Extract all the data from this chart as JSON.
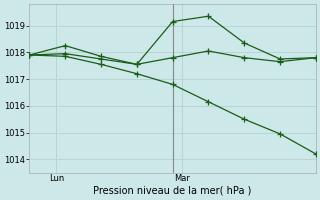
{
  "bg_color": "#cce8e8",
  "grid_color": "#b8d4d4",
  "line_color": "#1a5c1a",
  "title": "Pression niveau de la mer( hPa )",
  "ylim": [
    1013.5,
    1019.8
  ],
  "yticks": [
    1014,
    1015,
    1016,
    1017,
    1018,
    1019
  ],
  "xlim": [
    0,
    16
  ],
  "lun_x": 1.5,
  "mar_x": 8.5,
  "vline_x": 8.0,
  "series1_x": [
    0,
    2,
    4,
    6,
    8,
    10,
    12,
    14,
    16
  ],
  "series1_y": [
    1017.9,
    1018.25,
    1017.85,
    1017.55,
    1019.15,
    1019.35,
    1018.35,
    1017.75,
    1017.8
  ],
  "series2_x": [
    0,
    2,
    4,
    6,
    8,
    10,
    12,
    14,
    16
  ],
  "series2_y": [
    1017.9,
    1017.95,
    1017.75,
    1017.55,
    1017.8,
    1018.05,
    1017.8,
    1017.65,
    1017.8
  ],
  "series3_x": [
    0,
    2,
    4,
    6,
    8,
    10,
    12,
    14,
    16
  ],
  "series3_y": [
    1017.9,
    1017.85,
    1017.55,
    1017.2,
    1016.8,
    1016.15,
    1015.5,
    1014.95,
    1014.2
  ],
  "label_fontsize": 6,
  "xlabel_fontsize": 7
}
